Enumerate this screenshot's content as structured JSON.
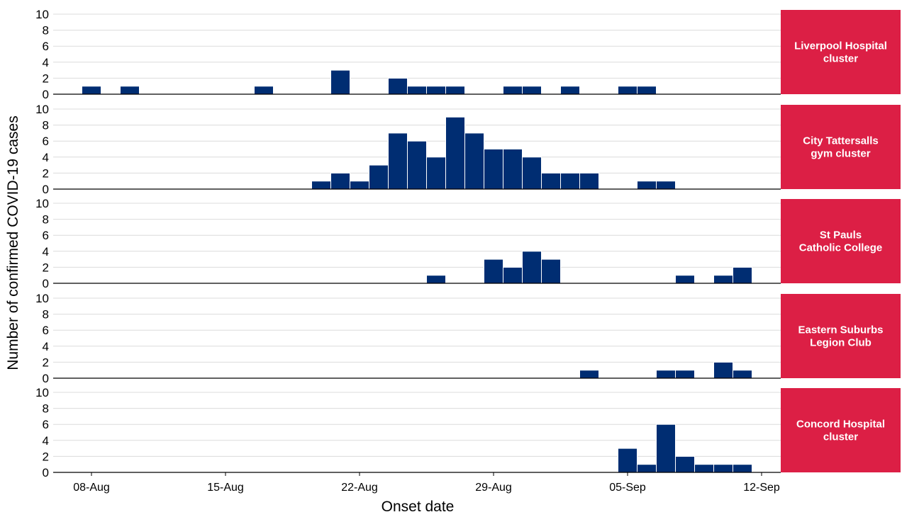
{
  "chart_data": {
    "type": "bar",
    "xlabel": "Onset date",
    "ylabel": "Number of confirmed COVID-19 cases",
    "ylim": [
      0,
      10
    ],
    "yticks": [
      0,
      2,
      4,
      6,
      8,
      10
    ],
    "x_range": [
      "2020-08-06",
      "2020-09-13"
    ],
    "x_ticks": [
      {
        "date": "2020-08-08",
        "label": "08-Aug"
      },
      {
        "date": "2020-08-15",
        "label": "15-Aug"
      },
      {
        "date": "2020-08-22",
        "label": "22-Aug"
      },
      {
        "date": "2020-08-29",
        "label": "29-Aug"
      },
      {
        "date": "2020-09-05",
        "label": "05-Sep"
      },
      {
        "date": "2020-09-12",
        "label": "12-Sep"
      }
    ],
    "grid": "horizontal",
    "bar_color": "#002d72",
    "strip_color": "#dc1f45",
    "series": [
      {
        "name": "Liverpool Hospital cluster",
        "label_lines": [
          "Liverpool Hospital",
          "cluster"
        ],
        "points": [
          {
            "x": "2020-08-08",
            "y": 1
          },
          {
            "x": "2020-08-10",
            "y": 1
          },
          {
            "x": "2020-08-17",
            "y": 1
          },
          {
            "x": "2020-08-21",
            "y": 3
          },
          {
            "x": "2020-08-24",
            "y": 2
          },
          {
            "x": "2020-08-25",
            "y": 1
          },
          {
            "x": "2020-08-26",
            "y": 1
          },
          {
            "x": "2020-08-27",
            "y": 1
          },
          {
            "x": "2020-08-30",
            "y": 1
          },
          {
            "x": "2020-08-31",
            "y": 1
          },
          {
            "x": "2020-09-02",
            "y": 1
          },
          {
            "x": "2020-09-05",
            "y": 1
          },
          {
            "x": "2020-09-06",
            "y": 1
          }
        ]
      },
      {
        "name": "City Tattersalls gym cluster",
        "label_lines": [
          "City Tattersalls",
          "gym cluster"
        ],
        "points": [
          {
            "x": "2020-08-20",
            "y": 1
          },
          {
            "x": "2020-08-21",
            "y": 2
          },
          {
            "x": "2020-08-22",
            "y": 1
          },
          {
            "x": "2020-08-23",
            "y": 3
          },
          {
            "x": "2020-08-24",
            "y": 7
          },
          {
            "x": "2020-08-25",
            "y": 6
          },
          {
            "x": "2020-08-26",
            "y": 4
          },
          {
            "x": "2020-08-27",
            "y": 9
          },
          {
            "x": "2020-08-28",
            "y": 7
          },
          {
            "x": "2020-08-29",
            "y": 5
          },
          {
            "x": "2020-08-30",
            "y": 5
          },
          {
            "x": "2020-08-31",
            "y": 4
          },
          {
            "x": "2020-09-01",
            "y": 2
          },
          {
            "x": "2020-09-02",
            "y": 2
          },
          {
            "x": "2020-09-03",
            "y": 2
          },
          {
            "x": "2020-09-06",
            "y": 1
          },
          {
            "x": "2020-09-07",
            "y": 1
          }
        ]
      },
      {
        "name": "St Pauls Catholic College",
        "label_lines": [
          "St Pauls",
          "Catholic College"
        ],
        "points": [
          {
            "x": "2020-08-26",
            "y": 1
          },
          {
            "x": "2020-08-29",
            "y": 3
          },
          {
            "x": "2020-08-30",
            "y": 2
          },
          {
            "x": "2020-08-31",
            "y": 4
          },
          {
            "x": "2020-09-01",
            "y": 3
          },
          {
            "x": "2020-09-08",
            "y": 1
          },
          {
            "x": "2020-09-10",
            "y": 1
          },
          {
            "x": "2020-09-11",
            "y": 2
          }
        ]
      },
      {
        "name": "Eastern Suburbs Legion Club",
        "label_lines": [
          "Eastern Suburbs",
          "Legion Club"
        ],
        "points": [
          {
            "x": "2020-09-03",
            "y": 1
          },
          {
            "x": "2020-09-07",
            "y": 1
          },
          {
            "x": "2020-09-08",
            "y": 1
          },
          {
            "x": "2020-09-10",
            "y": 2
          },
          {
            "x": "2020-09-11",
            "y": 1
          }
        ]
      },
      {
        "name": "Concord Hospital cluster",
        "label_lines": [
          "Concord Hospital",
          "cluster"
        ],
        "points": [
          {
            "x": "2020-09-05",
            "y": 3
          },
          {
            "x": "2020-09-06",
            "y": 1
          },
          {
            "x": "2020-09-07",
            "y": 6
          },
          {
            "x": "2020-09-08",
            "y": 2
          },
          {
            "x": "2020-09-09",
            "y": 1
          },
          {
            "x": "2020-09-10",
            "y": 1
          },
          {
            "x": "2020-09-11",
            "y": 1
          }
        ]
      }
    ]
  }
}
